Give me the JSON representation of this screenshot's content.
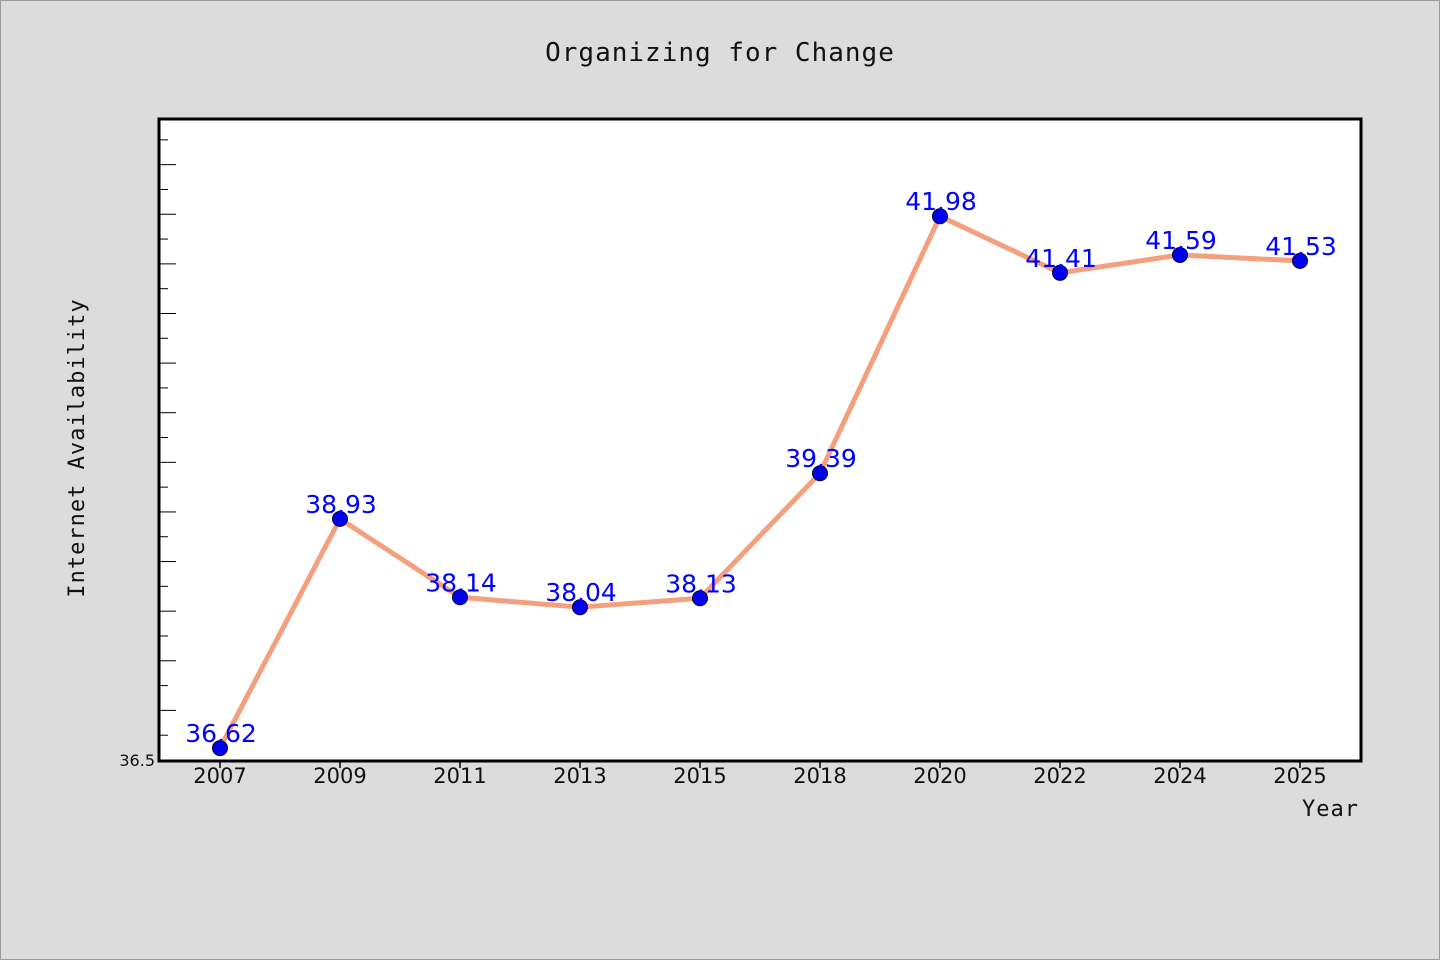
{
  "chart_data": {
    "type": "line",
    "title": "Organizing for Change",
    "xlabel": "Year",
    "ylabel": "Internet Availability",
    "categories": [
      "2007",
      "2009",
      "2011",
      "2013",
      "2015",
      "2018",
      "2020",
      "2022",
      "2024",
      "2025"
    ],
    "series": [
      {
        "values": [
          36.62,
          38.93,
          38.14,
          38.04,
          38.13,
          39.39,
          41.98,
          41.41,
          41.59,
          41.53
        ]
      }
    ],
    "data_labels": [
      "36.62",
      "38.93",
      "38.14",
      "38.04",
      "38.13",
      "39.39",
      "41.98",
      "41.41",
      "41.59",
      "41.53"
    ],
    "y_tick_labels": [
      "36.5"
    ],
    "ylim": [
      36.5,
      42.95
    ],
    "grid": false,
    "line_color": "#f4a07f",
    "marker_color": "#0000ee",
    "label_color": "#0000ff"
  }
}
